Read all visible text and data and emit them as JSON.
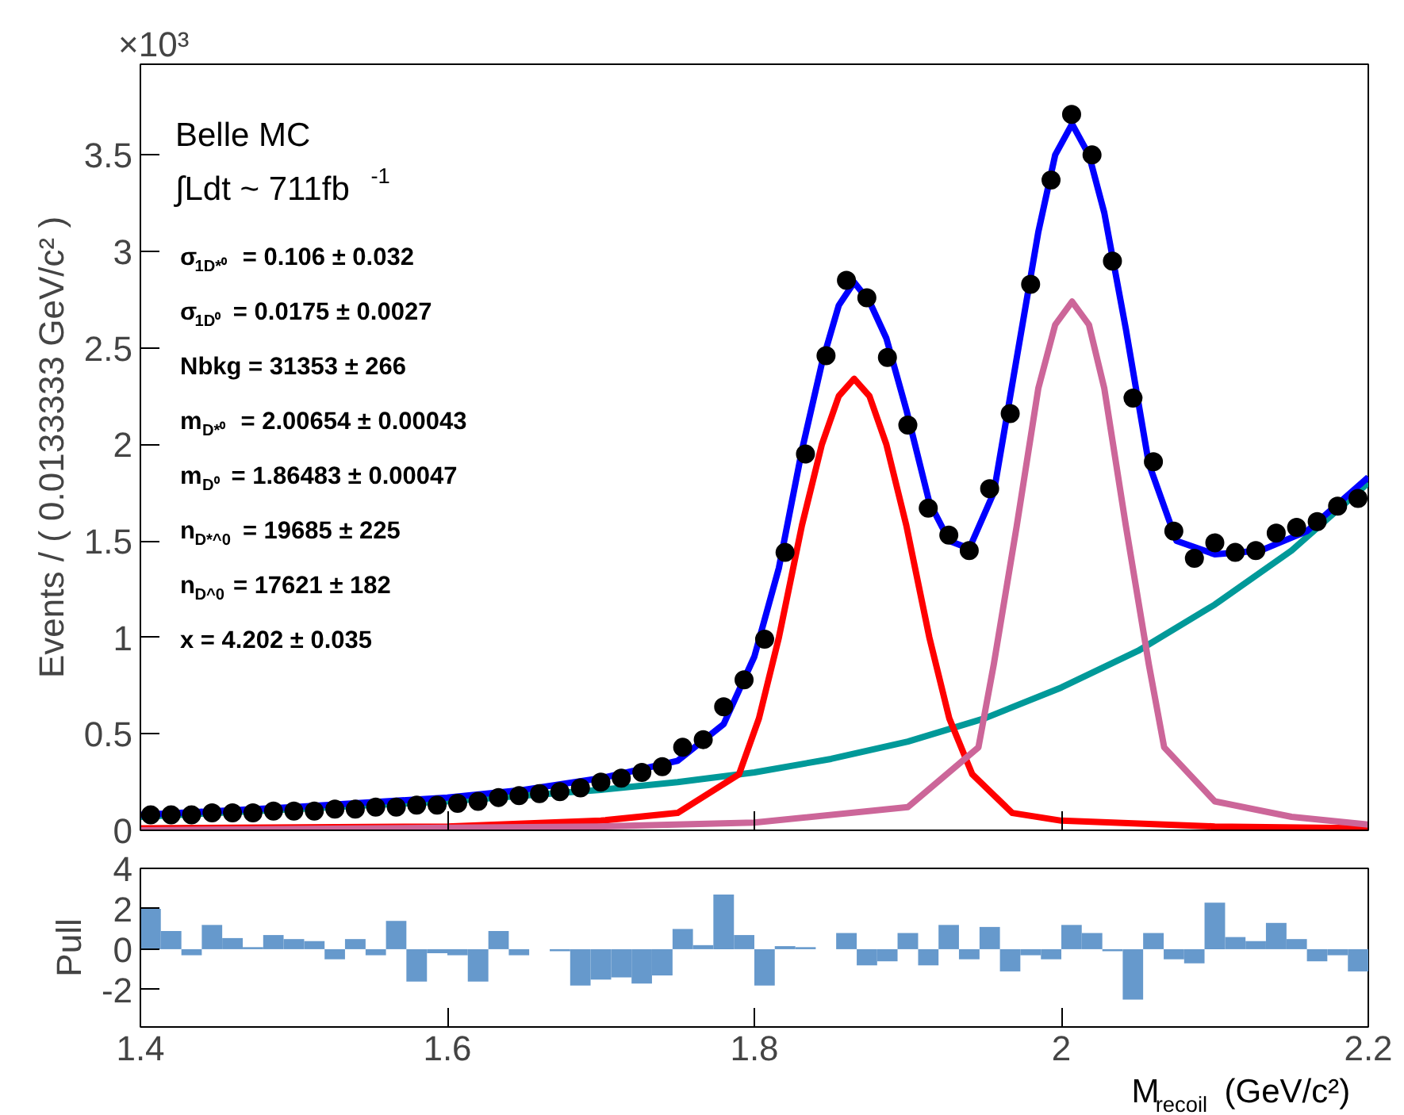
{
  "chart_data": [
    {
      "type": "scatter",
      "ylabel": "Events / ( 0.0133333 GeV/c² )",
      "xlim": [
        1.4,
        2.2
      ],
      "ylim": [
        0,
        3.97
      ],
      "xticks": [
        1.4,
        1.6,
        1.8,
        2.0,
        2.2
      ],
      "yticks": [
        0,
        0.5,
        1,
        1.5,
        2,
        2.5,
        3,
        3.5
      ],
      "tick_labels": "y",
      "grid": false,
      "annotations": [
        "×10³",
        "Belle MC",
        "∫Ldt ~ 711fb$^{-1}$",
        "σ$_{1D*⁰}$ =  0.106 ± 0.032",
        "σ$_{1D⁰}$ =  0.0175 ± 0.0027",
        "Nbkg =  31353 ± 266",
        "m$_{D*⁰}$ =  2.00654 ± 0.00043",
        "m$_{D⁰}$ =  1.86483 ± 0.00047",
        "n$_{D*^0}$ =  19685 ± 225",
        "n$_{D^0}$ =  17621 ± 182",
        "x =  4.202 ± 0.035"
      ],
      "series": [
        {
          "type": "line",
          "color": "#009999",
          "x": [
            1.4,
            1.45,
            1.5,
            1.55,
            1.6,
            1.65,
            1.7,
            1.75,
            1.8,
            1.85,
            1.9,
            1.95,
            2.0,
            2.05,
            2.1,
            2.15,
            2.2
          ],
          "values": [
            0.07,
            0.09,
            0.11,
            0.13,
            0.15,
            0.18,
            0.21,
            0.25,
            0.3,
            0.37,
            0.46,
            0.58,
            0.74,
            0.93,
            1.17,
            1.45,
            1.8
          ]
        },
        {
          "type": "line",
          "color": "#ff0000",
          "x": [
            1.4,
            1.6,
            1.7,
            1.75,
            1.79,
            1.803,
            1.816,
            1.831,
            1.844,
            1.855,
            1.865,
            1.875,
            1.886,
            1.899,
            1.914,
            1.927,
            1.942,
            1.968,
            2.0,
            2.1,
            2.2
          ],
          "values": [
            0.01,
            0.02,
            0.05,
            0.09,
            0.29,
            0.58,
            1.0,
            1.58,
            2.0,
            2.25,
            2.34,
            2.25,
            2.0,
            1.58,
            1.0,
            0.58,
            0.29,
            0.09,
            0.05,
            0.02,
            0.01
          ]
        },
        {
          "type": "line",
          "color": "#cc6699",
          "x": [
            1.4,
            1.7,
            1.8,
            1.9,
            1.946,
            1.956,
            1.971,
            1.985,
            1.996,
            2.007,
            2.018,
            2.028,
            2.042,
            2.057,
            2.067,
            2.1,
            2.15,
            2.2
          ],
          "values": [
            0.0,
            0.02,
            0.04,
            0.12,
            0.43,
            0.86,
            1.58,
            2.29,
            2.62,
            2.74,
            2.62,
            2.29,
            1.58,
            0.86,
            0.43,
            0.15,
            0.07,
            0.03
          ]
        },
        {
          "type": "line",
          "color": "#0000ff",
          "x": [
            1.4,
            1.5,
            1.6,
            1.65,
            1.7,
            1.75,
            1.78,
            1.8,
            1.816,
            1.831,
            1.844,
            1.855,
            1.865,
            1.875,
            1.886,
            1.899,
            1.914,
            1.927,
            1.94,
            1.956,
            1.971,
            1.985,
            1.996,
            2.007,
            2.018,
            2.028,
            2.042,
            2.057,
            2.075,
            2.1,
            2.13,
            2.16,
            2.2
          ],
          "values": [
            0.08,
            0.12,
            0.17,
            0.21,
            0.27,
            0.36,
            0.55,
            0.9,
            1.36,
            1.97,
            2.42,
            2.72,
            2.84,
            2.74,
            2.55,
            2.18,
            1.7,
            1.5,
            1.46,
            1.75,
            2.45,
            3.1,
            3.5,
            3.66,
            3.5,
            3.2,
            2.6,
            1.9,
            1.5,
            1.43,
            1.45,
            1.55,
            1.83
          ]
        },
        {
          "type": "scatter",
          "color": "#000000",
          "marker": "circle",
          "x": [
            1.4067,
            1.42,
            1.4333,
            1.4467,
            1.46,
            1.4733,
            1.4867,
            1.5,
            1.5133,
            1.5267,
            1.54,
            1.5533,
            1.5667,
            1.58,
            1.5933,
            1.6067,
            1.62,
            1.6333,
            1.6467,
            1.66,
            1.6733,
            1.6867,
            1.7,
            1.7133,
            1.7267,
            1.74,
            1.7533,
            1.7667,
            1.78,
            1.7933,
            1.8067,
            1.82,
            1.8333,
            1.8467,
            1.86,
            1.8733,
            1.8867,
            1.9,
            1.9133,
            1.9267,
            1.94,
            1.9533,
            1.9667,
            1.98,
            1.9933,
            2.0067,
            2.02,
            2.0333,
            2.0467,
            2.06,
            2.0733,
            2.0867,
            2.1,
            2.1133,
            2.1267,
            2.14,
            2.1533,
            2.1667,
            2.18,
            2.1933
          ],
          "values": [
            0.08,
            0.08,
            0.08,
            0.09,
            0.09,
            0.09,
            0.1,
            0.1,
            0.1,
            0.11,
            0.11,
            0.12,
            0.12,
            0.13,
            0.13,
            0.14,
            0.15,
            0.17,
            0.18,
            0.19,
            0.2,
            0.22,
            0.25,
            0.27,
            0.3,
            0.33,
            0.43,
            0.47,
            0.64,
            0.78,
            0.99,
            1.44,
            1.95,
            2.46,
            2.85,
            2.76,
            2.45,
            2.1,
            1.67,
            1.53,
            1.45,
            1.77,
            2.16,
            2.83,
            3.37,
            3.71,
            3.5,
            2.95,
            2.24,
            1.91,
            1.55,
            1.41,
            1.49,
            1.44,
            1.45,
            1.54,
            1.57,
            1.6,
            1.68,
            1.72
          ]
        }
      ]
    },
    {
      "type": "histogram",
      "ylabel": "Pull",
      "xlabel": "M$_{recoil}$ (GeV/c²)",
      "color": "#6699cc",
      "xlim": [
        1.4,
        2.2
      ],
      "ylim": [
        -3.85,
        4
      ],
      "xticks": [
        1.4,
        1.6,
        1.8,
        2,
        2.2
      ],
      "yticks": [
        -2,
        0,
        2,
        4
      ],
      "grid": false,
      "bins": [
        1.4,
        1.4133,
        1.4267,
        1.44,
        1.4533,
        1.4667,
        1.48,
        1.4933,
        1.5067,
        1.52,
        1.5333,
        1.5467,
        1.56,
        1.5733,
        1.5867,
        1.6,
        1.6133,
        1.6267,
        1.64,
        1.6533,
        1.6667,
        1.68,
        1.6933,
        1.7067,
        1.72,
        1.7333,
        1.7467,
        1.76,
        1.7733,
        1.7867,
        1.8,
        1.8133,
        1.8267,
        1.84,
        1.8533,
        1.8667,
        1.88,
        1.8933,
        1.9067,
        1.92,
        1.9333,
        1.9467,
        1.96,
        1.9733,
        1.9867,
        2.0,
        2.0133,
        2.0267,
        2.04,
        2.0533,
        2.0667,
        2.08,
        2.0933,
        2.1067,
        2.12,
        2.1333,
        2.1467,
        2.16,
        2.1733,
        2.1867,
        2.2
      ],
      "values": [
        2.0,
        0.9,
        -0.3,
        1.2,
        0.55,
        0.1,
        0.7,
        0.5,
        0.4,
        -0.5,
        0.5,
        -0.3,
        1.4,
        -1.6,
        -0.2,
        -0.3,
        -1.6,
        0.9,
        -0.3,
        0.0,
        -0.1,
        -1.8,
        -1.5,
        -1.4,
        -1.7,
        -1.3,
        1.0,
        0.2,
        2.7,
        0.7,
        -1.8,
        0.15,
        0.1,
        0.0,
        0.8,
        -0.8,
        -0.6,
        0.8,
        -0.8,
        1.2,
        -0.5,
        1.1,
        -1.1,
        -0.3,
        -0.5,
        1.2,
        0.8,
        -0.1,
        -2.5,
        0.8,
        -0.5,
        -0.7,
        2.3,
        0.6,
        0.4,
        1.3,
        0.5,
        -0.6,
        -0.3,
        -1.1
      ]
    }
  ]
}
